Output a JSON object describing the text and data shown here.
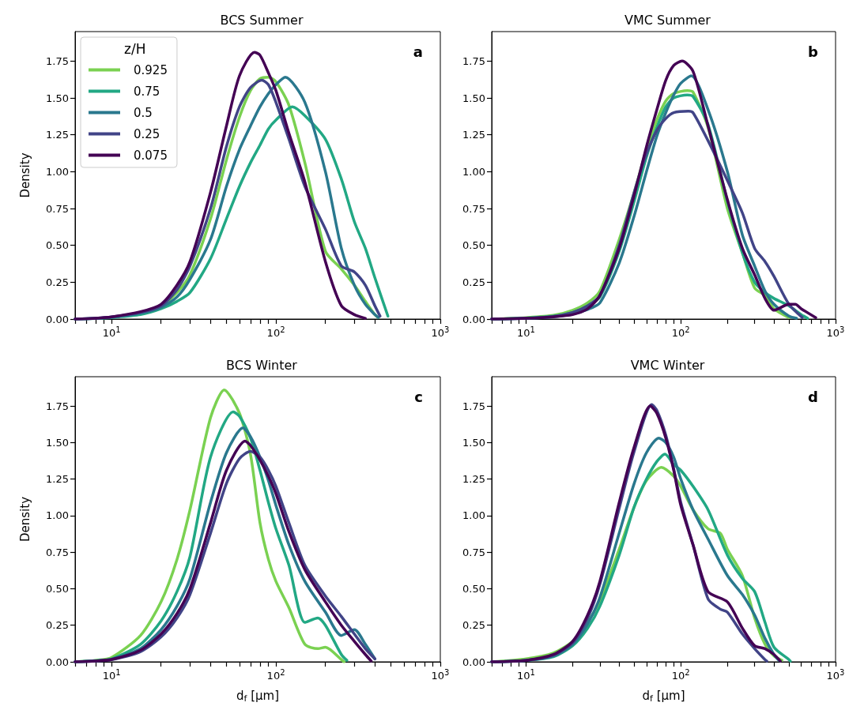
{
  "chart_data": [
    {
      "type": "line",
      "title": "BCS Summer",
      "ylabel": "Density",
      "legend": "top left",
      "legend_title": "z/H",
      "annotations": [
        "a"
      ],
      "log": "x",
      "grid": false,
      "line_style": "solid",
      "xlim": [
        6,
        1000
      ],
      "ylim": [
        0,
        1.95
      ],
      "xticks": [
        {
          "value": 6,
          "label": null
        },
        {
          "value": 7,
          "label": null
        },
        {
          "value": 8,
          "label": null
        },
        {
          "value": 9,
          "label": null
        },
        {
          "value": 10,
          "label": "10$^{1}$"
        },
        {
          "value": 20,
          "label": null
        },
        {
          "value": 30,
          "label": null
        },
        {
          "value": 40,
          "label": null
        },
        {
          "value": 50,
          "label": null
        },
        {
          "value": 60,
          "label": null
        },
        {
          "value": 70,
          "label": null
        },
        {
          "value": 80,
          "label": null
        },
        {
          "value": 90,
          "label": null
        },
        {
          "value": 100,
          "label": "10$^{2}$"
        },
        {
          "value": 200,
          "label": null
        },
        {
          "value": 300,
          "label": null
        },
        {
          "value": 400,
          "label": null
        },
        {
          "value": 500,
          "label": null
        },
        {
          "value": 600,
          "label": null
        },
        {
          "value": 700,
          "label": null
        },
        {
          "value": 800,
          "label": null
        },
        {
          "value": 900,
          "label": null
        },
        {
          "value": 1000,
          "label": "10$^{3}$"
        }
      ],
      "yticks": [
        {
          "value": 0,
          "label": "0.00"
        },
        {
          "value": 0.25,
          "label": "0.25"
        },
        {
          "value": 0.5,
          "label": "0.50"
        },
        {
          "value": 0.75,
          "label": "0.75"
        },
        {
          "value": 1,
          "label": "1.00"
        },
        {
          "value": 1.25,
          "label": "1.25"
        },
        {
          "value": 1.5,
          "label": "1.50"
        },
        {
          "value": 1.75,
          "label": "1.75"
        }
      ],
      "series": [
        {
          "name": "0.925",
          "color": "#7ad151",
          "x": [
            15,
            20,
            25,
            30,
            40,
            50,
            60,
            70,
            80,
            90,
            100,
            120,
            150,
            200,
            250,
            300,
            350,
            400,
            420
          ],
          "values": [
            0.045,
            0.09,
            0.18,
            0.3,
            0.68,
            1.08,
            1.37,
            1.55,
            1.63,
            1.64,
            1.61,
            1.45,
            1.06,
            0.46,
            0.34,
            0.23,
            0.12,
            0.03,
            0.01
          ]
        },
        {
          "name": "0.75",
          "color": "#22a884",
          "x": [
            6,
            8,
            10,
            15,
            20,
            25,
            30,
            40,
            50,
            60,
            70,
            80,
            90,
            100,
            126,
            150,
            200,
            250,
            300,
            350,
            400,
            480
          ],
          "values": [
            0,
            0.004,
            0.01,
            0.03,
            0.07,
            0.12,
            0.18,
            0.41,
            0.68,
            0.9,
            1.06,
            1.18,
            1.29,
            1.35,
            1.44,
            1.38,
            1.22,
            0.95,
            0.66,
            0.48,
            0.28,
            0.02
          ]
        },
        {
          "name": "0.5",
          "color": "#2a788e",
          "x": [
            6,
            8,
            10,
            15,
            20,
            25,
            30,
            40,
            50,
            60,
            70,
            80,
            90,
            100,
            114,
            150,
            200,
            250,
            300,
            350,
            400,
            420
          ],
          "values": [
            0,
            0.005,
            0.012,
            0.04,
            0.08,
            0.15,
            0.27,
            0.54,
            0.9,
            1.15,
            1.31,
            1.44,
            1.53,
            1.59,
            1.64,
            1.47,
            1.0,
            0.48,
            0.23,
            0.1,
            0.03,
            0.01
          ]
        },
        {
          "name": "0.25",
          "color": "#414487",
          "x": [
            6,
            8,
            10,
            15,
            20,
            25,
            30,
            40,
            50,
            60,
            70,
            82,
            90,
            100,
            120,
            150,
            200,
            250,
            300,
            350,
            400,
            430
          ],
          "values": [
            0,
            0.006,
            0.015,
            0.045,
            0.09,
            0.2,
            0.36,
            0.75,
            1.17,
            1.44,
            1.57,
            1.62,
            1.59,
            1.47,
            1.22,
            0.9,
            0.61,
            0.36,
            0.32,
            0.23,
            0.09,
            0.02
          ]
        },
        {
          "name": "0.075",
          "color": "#440154",
          "x": [
            6,
            8,
            10,
            15,
            20,
            25,
            30,
            40,
            50,
            60,
            74,
            80,
            90,
            100,
            120,
            150,
            200,
            250,
            300,
            350
          ],
          "values": [
            0,
            0.006,
            0.015,
            0.05,
            0.1,
            0.23,
            0.39,
            0.86,
            1.31,
            1.65,
            1.81,
            1.79,
            1.67,
            1.55,
            1.26,
            0.93,
            0.39,
            0.09,
            0.03,
            0.005
          ]
        }
      ]
    },
    {
      "type": "line",
      "title": "VMC Summer",
      "legend": false,
      "annotations": [
        "b"
      ],
      "log": "x",
      "grid": false,
      "line_style": "solid",
      "xlim": [
        6,
        1000
      ],
      "ylim": [
        0,
        1.95
      ],
      "xticks": [
        {
          "value": 6,
          "label": null
        },
        {
          "value": 7,
          "label": null
        },
        {
          "value": 8,
          "label": null
        },
        {
          "value": 9,
          "label": null
        },
        {
          "value": 10,
          "label": "10$^{1}$"
        },
        {
          "value": 20,
          "label": null
        },
        {
          "value": 30,
          "label": null
        },
        {
          "value": 40,
          "label": null
        },
        {
          "value": 50,
          "label": null
        },
        {
          "value": 60,
          "label": null
        },
        {
          "value": 70,
          "label": null
        },
        {
          "value": 80,
          "label": null
        },
        {
          "value": 90,
          "label": null
        },
        {
          "value": 100,
          "label": "10$^{2}$"
        },
        {
          "value": 200,
          "label": null
        },
        {
          "value": 300,
          "label": null
        },
        {
          "value": 400,
          "label": null
        },
        {
          "value": 500,
          "label": null
        },
        {
          "value": 600,
          "label": null
        },
        {
          "value": 700,
          "label": null
        },
        {
          "value": 800,
          "label": null
        },
        {
          "value": 900,
          "label": null
        },
        {
          "value": 1000,
          "label": "10$^{3}$"
        }
      ],
      "yticks": [
        {
          "value": 0,
          "label": "0.00"
        },
        {
          "value": 0.25,
          "label": "0.25"
        },
        {
          "value": 0.5,
          "label": "0.50"
        },
        {
          "value": 0.75,
          "label": "0.75"
        },
        {
          "value": 1,
          "label": "1.00"
        },
        {
          "value": 1.25,
          "label": "1.25"
        },
        {
          "value": 1.5,
          "label": "1.50"
        },
        {
          "value": 1.75,
          "label": "1.75"
        }
      ],
      "series": [
        {
          "name": "0.925",
          "color": "#7ad151",
          "x": [
            6,
            10,
            15,
            20,
            25,
            30,
            40,
            50,
            60,
            70,
            80,
            90,
            110,
            120,
            150,
            200,
            250,
            300,
            350,
            400,
            500
          ],
          "values": [
            0,
            0.01,
            0.025,
            0.06,
            0.11,
            0.19,
            0.54,
            0.86,
            1.15,
            1.35,
            1.48,
            1.53,
            1.55,
            1.54,
            1.3,
            0.75,
            0.45,
            0.21,
            0.16,
            0.07,
            0.01
          ]
        },
        {
          "name": "0.75",
          "color": "#22a884",
          "x": [
            6,
            10,
            15,
            20,
            25,
            30,
            40,
            50,
            60,
            70,
            80,
            90,
            110,
            120,
            150,
            200,
            250,
            300,
            350,
            400,
            500,
            600,
            660
          ],
          "values": [
            0,
            0.007,
            0.02,
            0.045,
            0.09,
            0.15,
            0.46,
            0.8,
            1.1,
            1.3,
            1.44,
            1.5,
            1.52,
            1.51,
            1.32,
            0.8,
            0.45,
            0.25,
            0.18,
            0.14,
            0.09,
            0.03,
            0.005
          ]
        },
        {
          "name": "0.5",
          "color": "#2a788e",
          "x": [
            6,
            10,
            15,
            20,
            25,
            30,
            40,
            50,
            60,
            70,
            80,
            90,
            100,
            117,
            150,
            200,
            250,
            300,
            350,
            400,
            500,
            560
          ],
          "values": [
            0,
            0.005,
            0.015,
            0.035,
            0.065,
            0.11,
            0.38,
            0.7,
            1.0,
            1.24,
            1.4,
            1.52,
            1.6,
            1.65,
            1.42,
            1.0,
            0.57,
            0.36,
            0.19,
            0.1,
            0.02,
            0.005
          ]
        },
        {
          "name": "0.25",
          "color": "#414487",
          "x": [
            6,
            10,
            15,
            20,
            25,
            30,
            40,
            50,
            60,
            70,
            80,
            90,
            112,
            120,
            150,
            200,
            250,
            300,
            350,
            400,
            500,
            610
          ],
          "values": [
            0,
            0.006,
            0.018,
            0.045,
            0.09,
            0.16,
            0.5,
            0.86,
            1.12,
            1.28,
            1.36,
            1.4,
            1.41,
            1.4,
            1.21,
            0.94,
            0.72,
            0.48,
            0.39,
            0.29,
            0.1,
            0.01
          ]
        },
        {
          "name": "0.075",
          "color": "#440154",
          "x": [
            6,
            10,
            15,
            20,
            25,
            30,
            40,
            50,
            60,
            70,
            80,
            90,
            102,
            120,
            150,
            200,
            250,
            300,
            350,
            400,
            500,
            550,
            600,
            745
          ],
          "values": [
            0,
            0.005,
            0.015,
            0.03,
            0.07,
            0.16,
            0.48,
            0.84,
            1.17,
            1.42,
            1.62,
            1.72,
            1.75,
            1.68,
            1.31,
            0.81,
            0.48,
            0.3,
            0.14,
            0.06,
            0.1,
            0.1,
            0.07,
            0.01
          ]
        }
      ]
    },
    {
      "type": "line",
      "title": "BCS Winter",
      "xlabel": "d$_{f}$ [μm]",
      "ylabel": "Density",
      "legend": false,
      "annotations": [
        "c"
      ],
      "log": "x",
      "grid": false,
      "line_style": "solid",
      "xlim": [
        6,
        1000
      ],
      "ylim": [
        0,
        1.95
      ],
      "xticks": [
        {
          "value": 6,
          "label": null
        },
        {
          "value": 7,
          "label": null
        },
        {
          "value": 8,
          "label": null
        },
        {
          "value": 9,
          "label": null
        },
        {
          "value": 10,
          "label": "10$^{1}$"
        },
        {
          "value": 20,
          "label": null
        },
        {
          "value": 30,
          "label": null
        },
        {
          "value": 40,
          "label": null
        },
        {
          "value": 50,
          "label": null
        },
        {
          "value": 60,
          "label": null
        },
        {
          "value": 70,
          "label": null
        },
        {
          "value": 80,
          "label": null
        },
        {
          "value": 90,
          "label": null
        },
        {
          "value": 100,
          "label": "10$^{2}$"
        },
        {
          "value": 200,
          "label": null
        },
        {
          "value": 300,
          "label": null
        },
        {
          "value": 400,
          "label": null
        },
        {
          "value": 500,
          "label": null
        },
        {
          "value": 600,
          "label": null
        },
        {
          "value": 700,
          "label": null
        },
        {
          "value": 800,
          "label": null
        },
        {
          "value": 900,
          "label": null
        },
        {
          "value": 1000,
          "label": "10$^{3}$"
        }
      ],
      "yticks": [
        {
          "value": 0,
          "label": "0.00"
        },
        {
          "value": 0.25,
          "label": "0.25"
        },
        {
          "value": 0.5,
          "label": "0.50"
        },
        {
          "value": 0.75,
          "label": "0.75"
        },
        {
          "value": 1,
          "label": "1.00"
        },
        {
          "value": 1.25,
          "label": "1.25"
        },
        {
          "value": 1.5,
          "label": "1.50"
        },
        {
          "value": 1.75,
          "label": "1.75"
        }
      ],
      "series": [
        {
          "name": "0.925",
          "color": "#7ad151",
          "x": [
            6,
            8,
            10,
            15,
            20,
            25,
            30,
            40,
            48.5,
            60,
            70,
            80,
            90,
            100,
            120,
            150,
            180,
            200,
            250,
            260
          ],
          "values": [
            0,
            0.01,
            0.03,
            0.18,
            0.41,
            0.7,
            1.04,
            1.67,
            1.86,
            1.7,
            1.42,
            0.95,
            0.7,
            0.55,
            0.37,
            0.12,
            0.09,
            0.1,
            0.015,
            0
          ]
        },
        {
          "name": "0.75",
          "color": "#22a884",
          "x": [
            6,
            8,
            10,
            15,
            20,
            25,
            30,
            40,
            55,
            60,
            70,
            80,
            90,
            100,
            120,
            150,
            180,
            200,
            250,
            270
          ],
          "values": [
            0,
            0.008,
            0.02,
            0.12,
            0.28,
            0.48,
            0.72,
            1.4,
            1.71,
            1.68,
            1.53,
            1.31,
            1.09,
            0.91,
            0.66,
            0.27,
            0.3,
            0.25,
            0.05,
            0.01
          ]
        },
        {
          "name": "0.5",
          "color": "#2a788e",
          "x": [
            6,
            8,
            10,
            15,
            20,
            25,
            30,
            40,
            50,
            63,
            70,
            80,
            90,
            100,
            120,
            150,
            200,
            250,
            300,
            350,
            400
          ],
          "values": [
            0,
            0.007,
            0.018,
            0.09,
            0.22,
            0.38,
            0.57,
            1.09,
            1.43,
            1.6,
            1.54,
            1.4,
            1.24,
            1.07,
            0.8,
            0.55,
            0.34,
            0.18,
            0.22,
            0.12,
            0.02
          ]
        },
        {
          "name": "0.25",
          "color": "#414487",
          "x": [
            6,
            8,
            10,
            15,
            20,
            25,
            30,
            40,
            50,
            60,
            70,
            80,
            90,
            100,
            120,
            150,
            200,
            250,
            300,
            350,
            400
          ],
          "values": [
            0,
            0.006,
            0.015,
            0.07,
            0.17,
            0.3,
            0.46,
            0.88,
            1.22,
            1.39,
            1.44,
            1.4,
            1.31,
            1.2,
            0.95,
            0.66,
            0.45,
            0.31,
            0.19,
            0.09,
            0.02
          ]
        },
        {
          "name": "0.075",
          "color": "#440154",
          "x": [
            6,
            8,
            10,
            15,
            20,
            25,
            30,
            40,
            50,
            65,
            70,
            80,
            90,
            100,
            120,
            150,
            200,
            250,
            300,
            350,
            380
          ],
          "values": [
            0,
            0.006,
            0.016,
            0.08,
            0.19,
            0.33,
            0.5,
            0.95,
            1.31,
            1.51,
            1.48,
            1.38,
            1.27,
            1.15,
            0.89,
            0.63,
            0.41,
            0.25,
            0.14,
            0.05,
            0.005
          ]
        }
      ]
    },
    {
      "type": "line",
      "title": "VMC Winter",
      "xlabel": "d$_{f}$ [μm]",
      "legend": false,
      "annotations": [
        "d"
      ],
      "log": "x",
      "grid": false,
      "line_style": "solid",
      "xlim": [
        6,
        1000
      ],
      "ylim": [
        0,
        1.95
      ],
      "xticks": [
        {
          "value": 6,
          "label": null
        },
        {
          "value": 7,
          "label": null
        },
        {
          "value": 8,
          "label": null
        },
        {
          "value": 9,
          "label": null
        },
        {
          "value": 10,
          "label": "10$^{1}$"
        },
        {
          "value": 20,
          "label": null
        },
        {
          "value": 30,
          "label": null
        },
        {
          "value": 40,
          "label": null
        },
        {
          "value": 50,
          "label": null
        },
        {
          "value": 60,
          "label": null
        },
        {
          "value": 70,
          "label": null
        },
        {
          "value": 80,
          "label": null
        },
        {
          "value": 90,
          "label": null
        },
        {
          "value": 100,
          "label": "10$^{2}$"
        },
        {
          "value": 200,
          "label": null
        },
        {
          "value": 300,
          "label": null
        },
        {
          "value": 400,
          "label": null
        },
        {
          "value": 500,
          "label": null
        },
        {
          "value": 600,
          "label": null
        },
        {
          "value": 700,
          "label": null
        },
        {
          "value": 800,
          "label": null
        },
        {
          "value": 900,
          "label": null
        },
        {
          "value": 1000,
          "label": "10$^{3}$"
        }
      ],
      "yticks": [
        {
          "value": 0,
          "label": "0.00"
        },
        {
          "value": 0.25,
          "label": "0.25"
        },
        {
          "value": 0.5,
          "label": "0.50"
        },
        {
          "value": 0.75,
          "label": "0.75"
        },
        {
          "value": 1,
          "label": "1.00"
        },
        {
          "value": 1.25,
          "label": "1.25"
        },
        {
          "value": 1.5,
          "label": "1.50"
        },
        {
          "value": 1.75,
          "label": "1.75"
        }
      ],
      "series": [
        {
          "name": "0.925",
          "color": "#7ad151",
          "x": [
            6,
            10,
            15,
            20,
            25,
            30,
            40,
            50,
            60,
            75,
            90,
            100,
            120,
            150,
            180,
            200,
            250,
            300,
            350,
            400,
            450
          ],
          "values": [
            0,
            0.02,
            0.06,
            0.14,
            0.27,
            0.42,
            0.77,
            1.06,
            1.24,
            1.33,
            1.27,
            1.2,
            1.04,
            0.91,
            0.88,
            0.77,
            0.59,
            0.3,
            0.12,
            0.04,
            0.01
          ]
        },
        {
          "name": "0.75",
          "color": "#22a884",
          "x": [
            6,
            10,
            15,
            20,
            25,
            30,
            40,
            50,
            60,
            70,
            79,
            90,
            100,
            120,
            150,
            200,
            250,
            300,
            350,
            400,
            500,
            510
          ],
          "values": [
            0,
            0.01,
            0.035,
            0.11,
            0.23,
            0.38,
            0.73,
            1.06,
            1.25,
            1.37,
            1.42,
            1.35,
            1.31,
            1.2,
            1.04,
            0.73,
            0.57,
            0.48,
            0.27,
            0.1,
            0.015,
            0.005
          ]
        },
        {
          "name": "0.5",
          "color": "#2a788e",
          "x": [
            6,
            10,
            15,
            20,
            25,
            30,
            40,
            50,
            60,
            72,
            80,
            90,
            100,
            120,
            150,
            200,
            250,
            300,
            350,
            400,
            430
          ],
          "values": [
            0,
            0.01,
            0.04,
            0.12,
            0.26,
            0.44,
            0.88,
            1.22,
            1.43,
            1.53,
            1.5,
            1.4,
            1.25,
            1.04,
            0.84,
            0.59,
            0.46,
            0.32,
            0.16,
            0.05,
            0.01
          ]
        },
        {
          "name": "0.25",
          "color": "#414487",
          "x": [
            6,
            10,
            15,
            20,
            25,
            30,
            40,
            50,
            65,
            70,
            80,
            90,
            100,
            120,
            150,
            180,
            200,
            250,
            300,
            350,
            360
          ],
          "values": [
            0,
            0.01,
            0.045,
            0.13,
            0.3,
            0.53,
            1.05,
            1.44,
            1.76,
            1.72,
            1.55,
            1.32,
            1.09,
            0.8,
            0.43,
            0.36,
            0.34,
            0.19,
            0.09,
            0.015,
            0.005
          ]
        },
        {
          "name": "0.075",
          "color": "#440154",
          "x": [
            6,
            10,
            15,
            20,
            25,
            30,
            40,
            50,
            63.5,
            70,
            80,
            90,
            100,
            120,
            150,
            200,
            250,
            300,
            350,
            400,
            440
          ],
          "values": [
            0,
            0.01,
            0.05,
            0.14,
            0.32,
            0.55,
            1.09,
            1.47,
            1.75,
            1.7,
            1.53,
            1.31,
            1.07,
            0.8,
            0.48,
            0.41,
            0.23,
            0.11,
            0.09,
            0.05,
            0.005
          ]
        }
      ]
    }
  ]
}
